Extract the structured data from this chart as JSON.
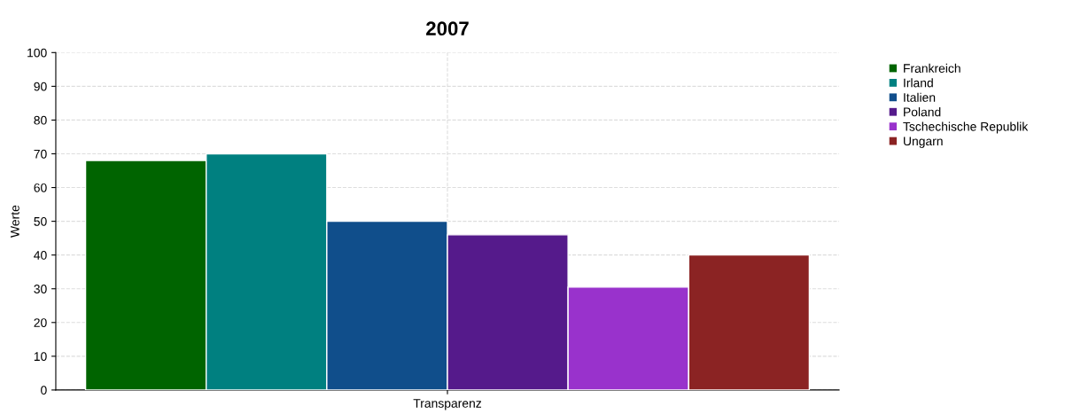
{
  "chart_data": {
    "type": "bar",
    "title": "2007",
    "ylabel": "Werte",
    "categories": [
      "Transparenz"
    ],
    "series": [
      {
        "name": "Frankreich",
        "color": "#006400",
        "values": [
          68
        ]
      },
      {
        "name": "Irland",
        "color": "#008080",
        "values": [
          70
        ]
      },
      {
        "name": "Italien",
        "color": "#104e8b",
        "values": [
          50
        ]
      },
      {
        "name": "Poland",
        "color": "#551a8b",
        "values": [
          46
        ]
      },
      {
        "name": "Tschechische Republik",
        "color": "#9932cc",
        "values": [
          30.5
        ]
      },
      {
        "name": "Ungarn",
        "color": "#8b2323",
        "values": [
          40
        ]
      }
    ],
    "ylim": [
      0,
      100
    ],
    "yticks": [
      0,
      10,
      20,
      30,
      40,
      50,
      60,
      70,
      80,
      90,
      100
    ],
    "grid": true,
    "legend": "right"
  }
}
